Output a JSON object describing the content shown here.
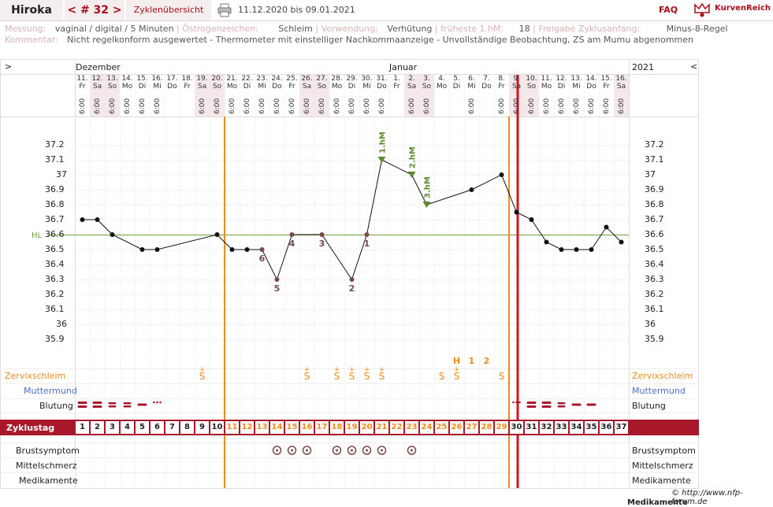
{
  "topbar": {
    "name": "Hiroka",
    "cycle": "< # 32 >",
    "overview": "Zyklenübersicht",
    "date_range": "11.12.2020 bis 09.01.2021",
    "faq": "FAQ",
    "brand": "KurvenReich",
    "print_icon": "printer-icon",
    "logo_icon": "crown-icon"
  },
  "meta": {
    "measurement_label": "Messung:",
    "measurement_value": "vaginal / digital / 5 Minuten",
    "estrogen_label": "Östrogenzeichen:",
    "estrogen_value": "Schleim",
    "use_label": "Verwendung:",
    "use_value": "Verhütung",
    "earliest_label": "früheste 1.hM:",
    "earliest_value": "18",
    "release_label": "Freigabe Zyklusanfang:",
    "release_value": "Minus-8-Regel",
    "comment_label": "Kommentar:",
    "comment_value": "Nicht regelkonform ausgewertet - Thermometer mit einstelliger Nachkommaanzeige - Unvollständige Beobachtung, ZS am Mumu abgenommen"
  },
  "header": {
    "left_arrow": ">",
    "right_arrow": "<",
    "month1": "Dezember",
    "month2": "Januar",
    "year": "2021"
  },
  "dates": [
    {
      "d": "11.",
      "w": "Fr",
      "t": "6:00"
    },
    {
      "d": "12.",
      "w": "Sa",
      "t": "6:00"
    },
    {
      "d": "13.",
      "w": "So",
      "t": "6:00"
    },
    {
      "d": "14.",
      "w": "Mo",
      "t": "6:00"
    },
    {
      "d": "15.",
      "w": "Di",
      "t": "6:00"
    },
    {
      "d": "16.",
      "w": "Mi",
      "t": "6:00"
    },
    {
      "d": "17.",
      "w": "Do",
      "t": ""
    },
    {
      "d": "18.",
      "w": "Fr",
      "t": ""
    },
    {
      "d": "19.",
      "w": "Sa",
      "t": "6:00"
    },
    {
      "d": "20.",
      "w": "So",
      "t": "6:00"
    },
    {
      "d": "21.",
      "w": "Mo",
      "t": "6:00"
    },
    {
      "d": "22.",
      "w": "Di",
      "t": "6:00"
    },
    {
      "d": "23.",
      "w": "Mi",
      "t": "6:00"
    },
    {
      "d": "24.",
      "w": "Do",
      "t": "6:00"
    },
    {
      "d": "25.",
      "w": "Fr",
      "t": "6:00"
    },
    {
      "d": "26.",
      "w": "Sa",
      "t": "6:00"
    },
    {
      "d": "27.",
      "w": "So",
      "t": "6:00"
    },
    {
      "d": "28.",
      "w": "Mo",
      "t": "6:00"
    },
    {
      "d": "29.",
      "w": "Di",
      "t": "6:00"
    },
    {
      "d": "30.",
      "w": "Mi",
      "t": "6:00"
    },
    {
      "d": "31.",
      "w": "Do",
      "t": "6:00"
    },
    {
      "d": "1.",
      "w": "Fr",
      "t": ""
    },
    {
      "d": "2.",
      "w": "Sa",
      "t": "6:00"
    },
    {
      "d": "3.",
      "w": "So",
      "t": "6:00"
    },
    {
      "d": "4.",
      "w": "Mo",
      "t": ""
    },
    {
      "d": "5.",
      "w": "Di",
      "t": ""
    },
    {
      "d": "6.",
      "w": "Mi",
      "t": "6:00"
    },
    {
      "d": "7.",
      "w": "Do",
      "t": ""
    },
    {
      "d": "8.",
      "w": "Fr",
      "t": "6:00"
    },
    {
      "d": "9.",
      "w": "Sa",
      "t": "6:00"
    },
    {
      "d": "10.",
      "w": "So",
      "t": "6:00"
    },
    {
      "d": "11.",
      "w": "Mo",
      "t": "6:00"
    },
    {
      "d": "12.",
      "w": "Di",
      "t": "6:00"
    },
    {
      "d": "13.",
      "w": "Mi",
      "t": "6:00"
    },
    {
      "d": "14.",
      "w": "Do",
      "t": "6:00"
    },
    {
      "d": "15.",
      "w": "Fr",
      "t": "6:00"
    },
    {
      "d": "16.",
      "w": "Sa",
      "t": "6:00"
    }
  ],
  "weekend_days": [
    2,
    3,
    9,
    10,
    16,
    17,
    23,
    24,
    30,
    31,
    37
  ],
  "rows": {
    "cervical_mucus": "Zervixschleim",
    "cervix": "Muttermund",
    "bleeding": "Blutung",
    "cycle_day": "Zyklustag",
    "breast": "Brustsymptom",
    "mittelschmerz": "Mittelschmerz",
    "medication": "Medikamente"
  },
  "colors": {
    "accent": "#a8182a",
    "orange": "#f08a1e",
    "hl_green": "#6ca33a",
    "cervix_blue": "#4f6fd0",
    "weekend": "#f4e8ea",
    "rule_red": "#d4141c"
  },
  "chart_data": {
    "type": "line",
    "ylabel": "",
    "ylim": [
      35.9,
      37.2
    ],
    "yticks": [
      "37.2",
      "37.1",
      "37",
      "36.9",
      "36.8",
      "36.7",
      "36.6",
      "36.5",
      "36.4",
      "36.3",
      "36.2",
      "36.1",
      "36",
      "35.9"
    ],
    "hl_label": "HL",
    "hl_value": 36.6,
    "series": [
      {
        "points": [
          {
            "day": 1,
            "y": 36.7
          },
          {
            "day": 2,
            "y": 36.7
          },
          {
            "day": 3,
            "y": 36.6
          },
          {
            "day": 5,
            "y": 36.5
          },
          {
            "day": 6,
            "y": 36.5
          },
          {
            "day": 10,
            "y": 36.6
          },
          {
            "day": 11,
            "y": 36.5
          },
          {
            "day": 12,
            "y": 36.5
          },
          {
            "day": 13,
            "y": 36.5,
            "ex": true
          },
          {
            "day": 14,
            "y": 36.3,
            "ex": true
          },
          {
            "day": 15,
            "y": 36.6,
            "ex": true
          },
          {
            "day": 17,
            "y": 36.6,
            "ex": true
          },
          {
            "day": 19,
            "y": 36.3,
            "ex": true
          },
          {
            "day": 20,
            "y": 36.6,
            "ex": true
          },
          {
            "day": 21,
            "y": 37.1,
            "hm": true
          },
          {
            "day": 23,
            "y": 37.0,
            "hm": true
          },
          {
            "day": 24,
            "y": 36.8,
            "hm": true
          },
          {
            "day": 27,
            "y": 36.9
          },
          {
            "day": 29,
            "y": 37.0
          },
          {
            "day": 30,
            "y": 36.75
          },
          {
            "day": 31,
            "y": 36.7
          },
          {
            "day": 32,
            "y": 36.55
          },
          {
            "day": 33,
            "y": 36.5
          },
          {
            "day": 34,
            "y": 36.5
          },
          {
            "day": 35,
            "y": 36.5
          },
          {
            "day": 36,
            "y": 36.65
          },
          {
            "day": 37,
            "y": 36.55
          }
        ]
      }
    ],
    "low_labels": [
      {
        "day": 13,
        "text": "6"
      },
      {
        "day": 14,
        "text": "5"
      },
      {
        "day": 15,
        "text": "4"
      },
      {
        "day": 17,
        "text": "3"
      },
      {
        "day": 19,
        "text": "2"
      },
      {
        "day": 20,
        "text": "1"
      }
    ],
    "high_labels": [
      {
        "day": 21,
        "text": "1.hM"
      },
      {
        "day": 23,
        "text": "2.hM"
      },
      {
        "day": 24,
        "text": "3.hM"
      }
    ],
    "peak_labels": [
      {
        "day": 26,
        "text": "H"
      },
      {
        "day": 27,
        "text": "1"
      },
      {
        "day": 28,
        "text": "2"
      }
    ],
    "mucus": [
      {
        "day": 9,
        "text": "S+"
      },
      {
        "day": 16,
        "text": "S+"
      },
      {
        "day": 18,
        "text": "S+"
      },
      {
        "day": 19,
        "text": "S+"
      },
      {
        "day": 20,
        "text": "S+"
      },
      {
        "day": 21,
        "text": "S+"
      },
      {
        "day": 25,
        "text": "S"
      },
      {
        "day": 26,
        "text": "S+"
      },
      {
        "day": 29,
        "text": "S"
      }
    ],
    "bleeding": [
      {
        "day": 1,
        "level": "heavy"
      },
      {
        "day": 2,
        "level": "heavy"
      },
      {
        "day": 3,
        "level": "medium"
      },
      {
        "day": 4,
        "level": "medium"
      },
      {
        "day": 5,
        "level": "light"
      },
      {
        "day": 6,
        "level": "spotting"
      },
      {
        "day": 30,
        "level": "spotting"
      },
      {
        "day": 31,
        "level": "heavy"
      },
      {
        "day": 32,
        "level": "heavy"
      },
      {
        "day": 33,
        "level": "medium"
      },
      {
        "day": 34,
        "level": "light"
      },
      {
        "day": 35,
        "level": "light"
      }
    ],
    "breast_symptom_days": [
      14,
      15,
      16,
      18,
      19,
      20,
      21,
      23
    ],
    "cycle_days": [
      "1",
      "2",
      "3",
      "4",
      "5",
      "6",
      "7",
      "8",
      "9",
      "10",
      "11",
      "12",
      "13",
      "14",
      "15",
      "16",
      "17",
      "18",
      "19",
      "20",
      "21",
      "22",
      "23",
      "24",
      "25",
      "26",
      "27",
      "28",
      "29",
      "30",
      "31",
      "32",
      "33",
      "34",
      "35",
      "36",
      "37"
    ],
    "markers": {
      "orange_lines": [
        10,
        29
      ],
      "red_line": 30
    }
  },
  "footer": {
    "copyright": "© http://www.nfp-forum.de",
    "cut_label": "Medikamente"
  }
}
